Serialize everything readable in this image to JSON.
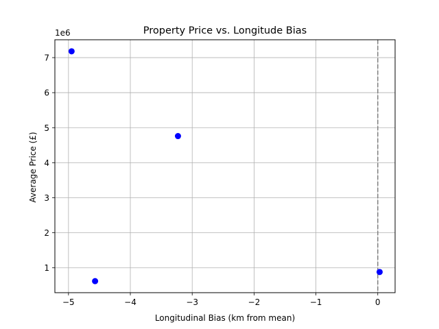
{
  "chart_data": {
    "type": "scatter",
    "title": "Property Price vs. Longitude Bias",
    "xlabel": "Longitudinal Bias (km from mean)",
    "ylabel": "Average Price (£)",
    "y_scale_label": "1e6",
    "xlim": [
      -5.22,
      0.28
    ],
    "ylim": [
      290000,
      7510000
    ],
    "x_ticks": [
      -5,
      -4,
      -3,
      -2,
      -1,
      0
    ],
    "x_tick_labels": [
      "−5",
      "−4",
      "−3",
      "−2",
      "−1",
      "0"
    ],
    "y_ticks": [
      1000000,
      2000000,
      3000000,
      4000000,
      5000000,
      6000000,
      7000000
    ],
    "y_tick_labels": [
      "1",
      "2",
      "3",
      "4",
      "5",
      "6",
      "7"
    ],
    "grid": true,
    "marker_color": "#0000ff",
    "reference_line": {
      "x": 0,
      "color": "#808080",
      "style": "dashed"
    },
    "points": [
      {
        "x": -4.95,
        "y": 7180000
      },
      {
        "x": -4.57,
        "y": 620000
      },
      {
        "x": -3.23,
        "y": 4760000
      },
      {
        "x": 0.03,
        "y": 880000
      }
    ]
  }
}
